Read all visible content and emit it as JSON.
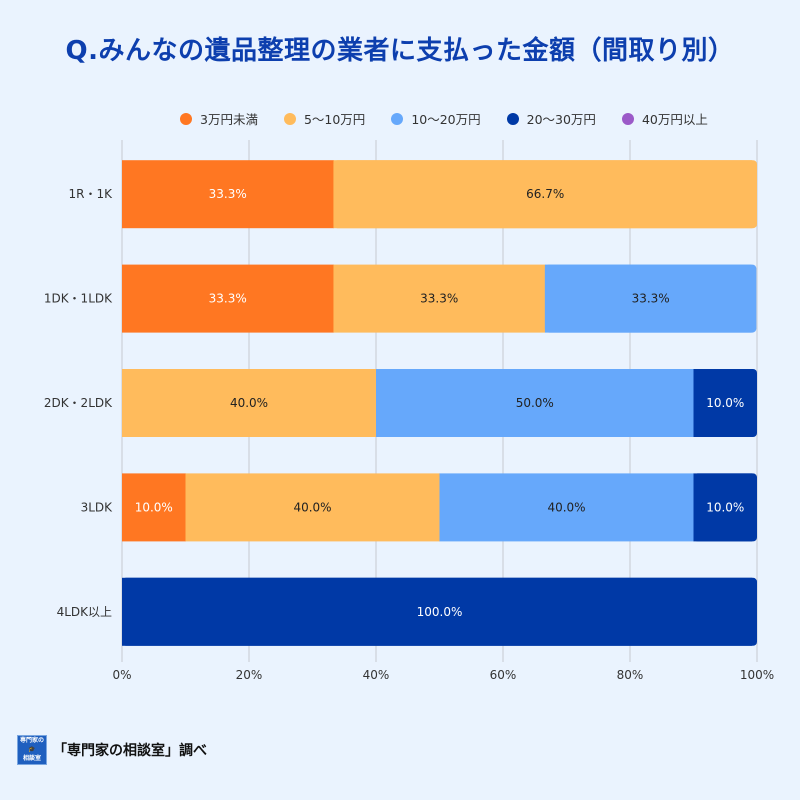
{
  "chart_data": {
    "type": "bar",
    "orientation": "horizontal",
    "stacked": true,
    "title": "Q.みんなの遺品整理の業者に支払った金額（間取り別）",
    "categories": [
      "1R・1K",
      "1DK・1LDK",
      "2DK・2LDK",
      "3LDK",
      "4LDK以上"
    ],
    "series": [
      {
        "name": "3万円未満",
        "color": "#ff7722",
        "values": [
          33.3,
          33.3,
          0,
          10.0,
          0
        ]
      },
      {
        "name": "5〜10万円",
        "color": "#ffbb5c",
        "values": [
          66.7,
          33.3,
          40.0,
          40.0,
          0
        ]
      },
      {
        "name": "10〜20万円",
        "color": "#66a8fb",
        "values": [
          0,
          33.3,
          50.0,
          40.0,
          0
        ]
      },
      {
        "name": "20〜30万円",
        "color": "#0039a6",
        "values": [
          0,
          0,
          10.0,
          10.0,
          100.0
        ]
      },
      {
        "name": "40万円以上",
        "color": "#9b59c8",
        "values": [
          0,
          0,
          0,
          0,
          0
        ]
      }
    ],
    "xlim": [
      0,
      100
    ],
    "xticks": [
      "0%",
      "20%",
      "40%",
      "60%",
      "80%",
      "100%"
    ],
    "grid": true,
    "legend": "top"
  },
  "footer": {
    "logo_text": "専門家の相談室",
    "text": "「専門家の相談室」調べ"
  }
}
